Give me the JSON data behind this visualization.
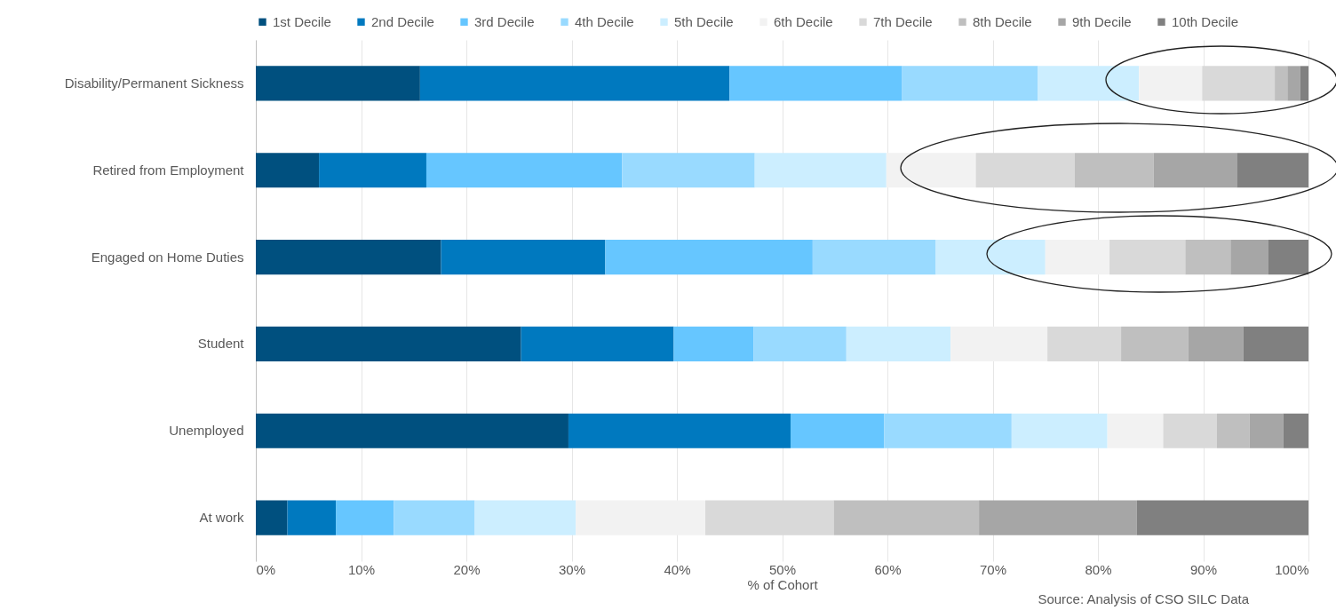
{
  "chart_data": {
    "type": "bar",
    "orientation": "horizontal",
    "stacked": true,
    "xlabel": "% of Cohort",
    "annotations": [
      "Source: Analysis of CSO SILC Data"
    ],
    "categories": [
      "Disability/Permanent Sickness",
      "Retired from Employment",
      "Engaged on Home Duties",
      "Student",
      "Unemployed",
      "At work"
    ],
    "xlim": [
      0,
      100
    ],
    "xticks": [
      {
        "value": 0,
        "label": "0%"
      },
      {
        "value": 10,
        "label": "10%"
      },
      {
        "value": 20,
        "label": "20%"
      },
      {
        "value": 30,
        "label": "30%"
      },
      {
        "value": 40,
        "label": "40%"
      },
      {
        "value": 50,
        "label": "50%"
      },
      {
        "value": 60,
        "label": "60%"
      },
      {
        "value": 70,
        "label": "70%"
      },
      {
        "value": 80,
        "label": "80%"
      },
      {
        "value": 90,
        "label": "90%"
      },
      {
        "value": 100,
        "label": "100%"
      }
    ],
    "grid": "x",
    "legend": "top",
    "series": [
      {
        "name": "1st Decile",
        "color": "#00507f",
        "values": [
          15.6,
          6.0,
          17.6,
          25.2,
          29.7,
          3.0
        ]
      },
      {
        "name": "2nd Decile",
        "color": "#0079bf",
        "values": [
          29.4,
          10.2,
          15.6,
          14.5,
          21.1,
          4.6
        ]
      },
      {
        "name": "3rd Decile",
        "color": "#66c6ff",
        "values": [
          16.4,
          18.6,
          19.7,
          7.6,
          8.9,
          5.5
        ]
      },
      {
        "name": "4th Decile",
        "color": "#99daff",
        "values": [
          12.9,
          12.6,
          11.7,
          8.8,
          12.1,
          7.7
        ]
      },
      {
        "name": "5th Decile",
        "color": "#cceeff",
        "values": [
          9.6,
          12.5,
          10.4,
          9.9,
          9.1,
          9.6
        ]
      },
      {
        "name": "6th Decile",
        "color": "#f2f2f2",
        "values": [
          6.0,
          8.5,
          6.1,
          9.2,
          5.3,
          12.3
        ]
      },
      {
        "name": "7th Decile",
        "color": "#d9d9d9",
        "values": [
          6.9,
          9.4,
          7.2,
          7.0,
          5.1,
          12.2
        ]
      },
      {
        "name": "8th Decile",
        "color": "#bfbfbf",
        "values": [
          1.2,
          7.5,
          4.3,
          6.4,
          3.1,
          13.8
        ]
      },
      {
        "name": "9th Decile",
        "color": "#a6a6a6",
        "values": [
          1.2,
          7.9,
          3.6,
          5.2,
          3.2,
          15.0
        ]
      },
      {
        "name": "10th Decile",
        "color": "#808080",
        "values": [
          0.8,
          6.8,
          3.8,
          6.2,
          2.4,
          16.3
        ]
      }
    ]
  }
}
